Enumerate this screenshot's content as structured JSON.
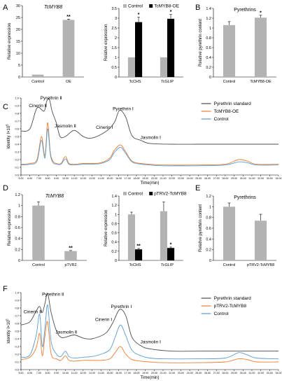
{
  "colors": {
    "standard": "#4d4d4d",
    "treated": "#ed7d31",
    "control": "#5b9bd5",
    "bar_gray": "#b3b3b3",
    "bar_black": "#000000"
  },
  "panels": [
    {
      "id": "A",
      "label": "A"
    },
    {
      "id": "B",
      "label": "B"
    },
    {
      "id": "C",
      "label": "C"
    },
    {
      "id": "D",
      "label": "D"
    },
    {
      "id": "E",
      "label": "E"
    },
    {
      "id": "F",
      "label": "F"
    }
  ],
  "chart_data": [
    {
      "id": "A1",
      "type": "bar",
      "title": "TcMYB8",
      "ylabel": "Relative expression",
      "xlabel": "",
      "categories": [
        "Control",
        "OE"
      ],
      "values": [
        1,
        24
      ],
      "errors": [
        0,
        0.3
      ],
      "significance": [
        "",
        "**"
      ],
      "ylim": [
        0,
        30
      ],
      "yticks": [
        "0",
        "5",
        "10",
        "15",
        "20",
        "25",
        "30"
      ]
    },
    {
      "id": "A2",
      "type": "bar",
      "ylabel": "Relative expression",
      "xlabel": "",
      "categories": [
        "TcCHS",
        "TcGLIP"
      ],
      "series": [
        {
          "name": "Control",
          "color": "#b3b3b3",
          "values": [
            1,
            1
          ],
          "errors": [
            0,
            0
          ]
        },
        {
          "name": "TcMYB8-OE",
          "color": "#000000",
          "values": [
            2.8,
            2.97
          ],
          "errors": [
            0.25,
            0.22
          ]
        }
      ],
      "significance": [
        "*",
        "*"
      ],
      "ylim": [
        0,
        3.5
      ],
      "yticks": [
        "0",
        "0.5",
        "1",
        "1.5",
        "2",
        "2.5",
        "3",
        "3.5"
      ]
    },
    {
      "id": "B1",
      "type": "bar",
      "title": "Pyrethrins",
      "ylabel": "Relative pyrethrin content",
      "xlabel": "",
      "categories": [
        "Control",
        "TcMYB8-OE"
      ],
      "values": [
        1.06,
        1.21
      ],
      "errors": [
        0.07,
        0.05
      ],
      "significance": [
        "",
        "*"
      ],
      "ylim": [
        0,
        1.4
      ],
      "yticks": [
        "0",
        "0.2",
        "0.4",
        "0.6",
        "0.8",
        "1",
        "1.2",
        "1.4"
      ]
    },
    {
      "id": "C1",
      "type": "line",
      "ylabel": "Identity I×10",
      "ylabel_sup": "5",
      "xlabel": "Time(min)",
      "xlim": [
        5,
        34
      ],
      "xticks": [
        "5.00",
        "6.00",
        "7.00",
        "8.00",
        "9.00",
        "10.00",
        "11.00",
        "12.00",
        "13.00",
        "14.00",
        "15.00",
        "16.00",
        "17.00",
        "18.00",
        "19.00",
        "20.00",
        "21.00",
        "22.00",
        "23.00",
        "24.00",
        "25.00",
        "26.00",
        "27.00",
        "28.00",
        "29.00",
        "30.00",
        "31.00",
        "32.00",
        "33.00",
        "34.00"
      ],
      "ylim": [
        0,
        1.0
      ],
      "yticks": [
        "0.0",
        "0.1",
        "0.2",
        "0.3",
        "0.4",
        "0.5",
        "0.6",
        "0.7",
        "0.8",
        "0.9",
        "1.0"
      ],
      "legend": "right",
      "series": [
        {
          "name": "Pyrethrin standard",
          "color": "#4d4d4d",
          "x": [
            5,
            6,
            6.8,
            7.6,
            7.9,
            8.2,
            8.5,
            9,
            9.4,
            10,
            11,
            12,
            13,
            14.5,
            15.5,
            16.1,
            16.8,
            17.5,
            18.5,
            19.5,
            22,
            25,
            28,
            31,
            34
          ],
          "y": [
            0.57,
            0.6,
            0.87,
            0.83,
            0.96,
            0.98,
            0.83,
            0.67,
            0.5,
            0.5,
            0.58,
            0.5,
            0.48,
            0.56,
            0.68,
            0.84,
            0.75,
            0.51,
            0.45,
            0.41,
            0.4,
            0.4,
            0.4,
            0.4,
            0.4
          ]
        },
        {
          "name": "TcMYB8-OE",
          "color": "#ed7d31",
          "x": [
            5,
            6,
            6.8,
            7.3,
            7.7,
            8.0,
            8.3,
            8.6,
            9,
            9.5,
            10,
            10.4,
            11,
            12,
            13,
            14,
            15,
            15.5,
            16.2,
            16.8,
            17.5,
            18.5,
            19.5,
            21,
            25,
            28,
            29.5,
            30.5,
            31.5,
            34
          ],
          "y": [
            0.14,
            0.15,
            0.2,
            0.5,
            0.25,
            0.68,
            0.3,
            0.18,
            0.15,
            0.15,
            0.24,
            0.15,
            0.14,
            0.15,
            0.15,
            0.16,
            0.22,
            0.32,
            0.39,
            0.3,
            0.18,
            0.15,
            0.14,
            0.13,
            0.13,
            0.14,
            0.2,
            0.18,
            0.14,
            0.14
          ]
        },
        {
          "name": "Control",
          "color": "#5b9bd5",
          "x": [
            5,
            6,
            6.8,
            7.3,
            7.7,
            8.0,
            8.3,
            8.6,
            9,
            9.5,
            10,
            10.4,
            11,
            12,
            13,
            14,
            15,
            15.5,
            16.2,
            16.8,
            17.5,
            18.5,
            19.5,
            21,
            25,
            28,
            29.5,
            30.5,
            31.5,
            34
          ],
          "y": [
            0.13,
            0.14,
            0.18,
            0.45,
            0.22,
            0.6,
            0.27,
            0.16,
            0.14,
            0.14,
            0.21,
            0.14,
            0.13,
            0.14,
            0.14,
            0.15,
            0.2,
            0.29,
            0.36,
            0.28,
            0.17,
            0.14,
            0.13,
            0.12,
            0.12,
            0.13,
            0.17,
            0.16,
            0.13,
            0.13
          ]
        }
      ],
      "annotations": [
        {
          "text": "Cinerin Ⅱ",
          "x": 6.9,
          "y": 0.88
        },
        {
          "text": "Pyrethrin Ⅱ",
          "x": 8.4,
          "y": 0.98
        },
        {
          "text": "Jasmolin Ⅱ",
          "x": 10.0,
          "y": 0.62
        },
        {
          "text": "Cinerin Ⅰ",
          "x": 14.4,
          "y": 0.6
        },
        {
          "text": "Pyrethrin Ⅰ",
          "x": 16.5,
          "y": 0.84
        },
        {
          "text": "Jasmolin Ⅰ",
          "x": 19.6,
          "y": 0.47
        }
      ]
    },
    {
      "id": "D1",
      "type": "bar",
      "title": "TcMYB8",
      "ylabel": "Relative expression",
      "xlabel": "",
      "categories": [
        "Control",
        "pTVR2"
      ],
      "values": [
        1.0,
        0.17
      ],
      "errors": [
        0.07,
        0.01
      ],
      "significance": [
        "",
        "**"
      ],
      "ylim": [
        0,
        1.2
      ],
      "yticks": [
        "0",
        "0.2",
        "0.4",
        "0.6",
        "0.8",
        "1",
        "1.2"
      ]
    },
    {
      "id": "D2",
      "type": "bar",
      "ylabel": "Relative expression",
      "xlabel": "",
      "categories": [
        "TcCHS",
        "TcGLIP"
      ],
      "series": [
        {
          "name": "Control",
          "color": "#b3b3b3",
          "values": [
            1.0,
            1.07
          ],
          "errors": [
            0.05,
            0.2
          ]
        },
        {
          "name": "pTRV2-TcMYB8",
          "color": "#000000",
          "values": [
            0.24,
            0.27
          ],
          "errors": [
            0.02,
            0.02
          ]
        }
      ],
      "significance": [
        "**",
        "*"
      ],
      "ylim": [
        0,
        1.4
      ],
      "yticks": [
        "0",
        "0.2",
        "0.4",
        "0.6",
        "0.8",
        "1",
        "1.2",
        "1.4"
      ]
    },
    {
      "id": "E1",
      "type": "bar",
      "title": "Pyrethrins",
      "ylabel": "Relative pyrethrin content",
      "xlabel": "",
      "categories": [
        "Control",
        "pTRV2-TcMYB8"
      ],
      "values": [
        1.0,
        0.74
      ],
      "errors": [
        0.07,
        0.12
      ],
      "significance": [
        "",
        ""
      ],
      "ylim": [
        0,
        1.2
      ],
      "yticks": [
        "0",
        "0.2",
        "0.4",
        "0.6",
        "0.8",
        "1",
        "1.2"
      ]
    },
    {
      "id": "F1",
      "type": "line",
      "ylabel": "Identity I×10",
      "ylabel_sup": "5",
      "xlabel": "Time(min)",
      "xlim": [
        5,
        34
      ],
      "xticks": [
        "5.00",
        "6.00",
        "7.00",
        "8.00",
        "9.00",
        "10.00",
        "11.00",
        "12.00",
        "13.00",
        "14.00",
        "15.00",
        "16.00",
        "17.00",
        "18.00",
        "19.00",
        "20.00",
        "21.00",
        "22.00",
        "23.00",
        "24.00",
        "25.00",
        "26.00",
        "27.00",
        "28.00",
        "29.00",
        "30.00",
        "31.00",
        "32.00",
        "33.00",
        "34.00"
      ],
      "ylim": [
        0,
        1.0
      ],
      "yticks": [
        "0.0",
        "0.1",
        "0.2",
        "0.3",
        "0.4",
        "0.5",
        "0.6",
        "0.7",
        "0.8",
        "0.9",
        "1.0"
      ],
      "legend": "right",
      "series": [
        {
          "name": "Pyrethrin standard",
          "color": "#4d4d4d",
          "x": [
            5,
            6,
            6.7,
            7.1,
            7.4,
            7.7,
            8.0,
            8.4,
            9,
            9.5,
            10,
            11,
            12,
            13,
            14.5,
            15.3,
            16.1,
            16.8,
            17.5,
            18.5,
            19.5,
            22,
            25,
            28,
            31,
            34
          ],
          "y": [
            0.58,
            0.62,
            0.76,
            0.82,
            0.74,
            0.86,
            0.99,
            0.74,
            0.5,
            0.42,
            0.42,
            0.45,
            0.41,
            0.4,
            0.47,
            0.6,
            0.78,
            0.7,
            0.42,
            0.31,
            0.27,
            0.24,
            0.24,
            0.24,
            0.24,
            0.24
          ]
        },
        {
          "name": "pTRV2-TcMYB8",
          "color": "#ed7d31",
          "x": [
            5,
            6,
            6.7,
            7.1,
            7.4,
            7.7,
            8.0,
            8.4,
            9,
            9.5,
            10,
            10.4,
            11,
            12,
            13,
            14,
            15,
            15.6,
            16.2,
            16.8,
            17.5,
            18.5,
            19.5,
            21,
            25,
            28,
            29.5,
            30.5,
            31.5,
            34
          ],
          "y": [
            0.13,
            0.16,
            0.28,
            0.47,
            0.18,
            0.44,
            0.62,
            0.2,
            0.14,
            0.12,
            0.18,
            0.12,
            0.11,
            0.12,
            0.12,
            0.12,
            0.14,
            0.22,
            0.3,
            0.2,
            0.13,
            0.11,
            0.1,
            0.09,
            0.09,
            0.1,
            0.14,
            0.13,
            0.1,
            0.1
          ]
        },
        {
          "name": "Control",
          "color": "#5b9bd5",
          "x": [
            5,
            6,
            6.7,
            7.1,
            7.4,
            7.7,
            8.0,
            8.4,
            9,
            9.5,
            10,
            10.4,
            11,
            12,
            13,
            14,
            15,
            15.6,
            16.2,
            16.8,
            17.5,
            18.5,
            19.5,
            21,
            25,
            28,
            29.5,
            30.5,
            31.5,
            34
          ],
          "y": [
            0.16,
            0.19,
            0.44,
            0.72,
            0.3,
            0.54,
            0.84,
            0.36,
            0.2,
            0.17,
            0.24,
            0.17,
            0.15,
            0.16,
            0.17,
            0.2,
            0.26,
            0.42,
            0.58,
            0.44,
            0.25,
            0.18,
            0.15,
            0.14,
            0.14,
            0.15,
            0.22,
            0.19,
            0.15,
            0.14
          ]
        }
      ],
      "annotations": [
        {
          "text": "Cinerin Ⅱ",
          "x": 6.3,
          "y": 0.73
        },
        {
          "text": "Pyrethrin Ⅱ",
          "x": 8.6,
          "y": 0.96
        },
        {
          "text": "Jasmolin Ⅱ",
          "x": 10.1,
          "y": 0.47
        },
        {
          "text": "Cinerin Ⅰ",
          "x": 14.3,
          "y": 0.63
        },
        {
          "text": "Pyrethrin Ⅰ",
          "x": 16.3,
          "y": 0.8
        },
        {
          "text": "Jasmolin Ⅰ",
          "x": 19.6,
          "y": 0.34
        }
      ]
    }
  ]
}
